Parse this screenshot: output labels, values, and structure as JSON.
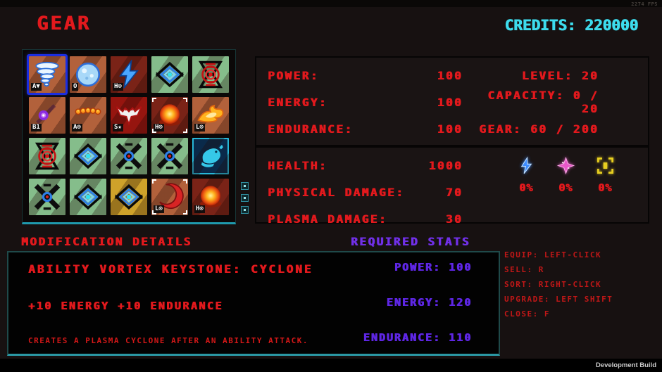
{
  "header": {
    "title": "GEAR",
    "credits": "CREDITS: 220000",
    "fps": "2274 FPS"
  },
  "inventory": {
    "scroll_dots": 3,
    "items": [
      {
        "icon": "cyclone",
        "bg": "orange",
        "label": "A▼",
        "selected": true
      },
      {
        "icon": "frost-orb",
        "bg": "orange",
        "label": "O"
      },
      {
        "icon": "lightning",
        "bg": "maroon",
        "label": "H⊙"
      },
      {
        "icon": "vortex-eye",
        "bg": "green"
      },
      {
        "icon": "red-pulse",
        "bg": "green"
      },
      {
        "icon": "purple-orb",
        "bg": "orange",
        "label": "B1"
      },
      {
        "icon": "ember-beads",
        "bg": "orange",
        "label": "A⊙"
      },
      {
        "icon": "eagle",
        "bg": "red",
        "label": "S★"
      },
      {
        "icon": "fireball",
        "bg": "maroon",
        "label": "H⊙",
        "brackets": true
      },
      {
        "icon": "flame",
        "bg": "orange",
        "label": "L⊙"
      },
      {
        "icon": "red-pulse",
        "bg": "green"
      },
      {
        "icon": "vortex-eye",
        "bg": "green"
      },
      {
        "icon": "x-vortex",
        "bg": "green"
      },
      {
        "icon": "x-vortex",
        "bg": "green"
      },
      {
        "icon": "rat",
        "bg": "blue"
      },
      {
        "icon": "x-vortex",
        "bg": "green"
      },
      {
        "icon": "vortex-eye",
        "bg": "green"
      },
      {
        "icon": "vortex-eye",
        "bg": "gold"
      },
      {
        "icon": "crescent",
        "bg": "orange",
        "label": "L⊙",
        "brackets": true
      },
      {
        "icon": "fireball",
        "bg": "maroon",
        "label": "H⊙"
      }
    ]
  },
  "stats": {
    "primary": [
      {
        "label": "POWER:",
        "value": "100",
        "right": "LEVEL: 20"
      },
      {
        "label": "ENERGY:",
        "value": "100",
        "right": "CAPACITY: 0 / 20"
      },
      {
        "label": "ENDURANCE:",
        "value": "100",
        "right": "GEAR: 60 / 200"
      }
    ],
    "secondary": [
      {
        "label": "HEALTH:",
        "value": "1000"
      },
      {
        "label": "PHYSICAL DAMAGE:",
        "value": "70"
      },
      {
        "label": "PLASMA DAMAGE:",
        "value": "30"
      }
    ],
    "resistances": [
      {
        "icon": "blue-bolt-icon",
        "value": "0%"
      },
      {
        "icon": "pink-star-icon",
        "value": "0%"
      },
      {
        "icon": "yellow-target-icon",
        "value": "0%"
      }
    ]
  },
  "sections": {
    "modification_title": "MODIFICATION DETAILS",
    "required_title": "REQUIRED STATS"
  },
  "modification": {
    "name": "ABILITY VORTEX KEYSTONE: CYCLONE",
    "bonus": "+10 ENERGY +10 ENDURANCE",
    "description": "CREATES A PLASMA CYCLONE AFTER AN ABILITY ATTACK."
  },
  "required_stats": [
    "POWER: 100",
    "ENERGY: 120",
    "ENDURANCE: 110"
  ],
  "controls": [
    "EQUIP: LEFT-CLICK",
    "SELL: R",
    "SORT: RIGHT-CLICK",
    "UPGRADE: LEFT SHIFT",
    "CLOSE: F"
  ],
  "footer": {
    "build": "Development Build"
  },
  "colors": {
    "red": "#e2191d",
    "cyan": "#3ddced",
    "purple": "#7130e8",
    "teal": "#2b98a4"
  }
}
